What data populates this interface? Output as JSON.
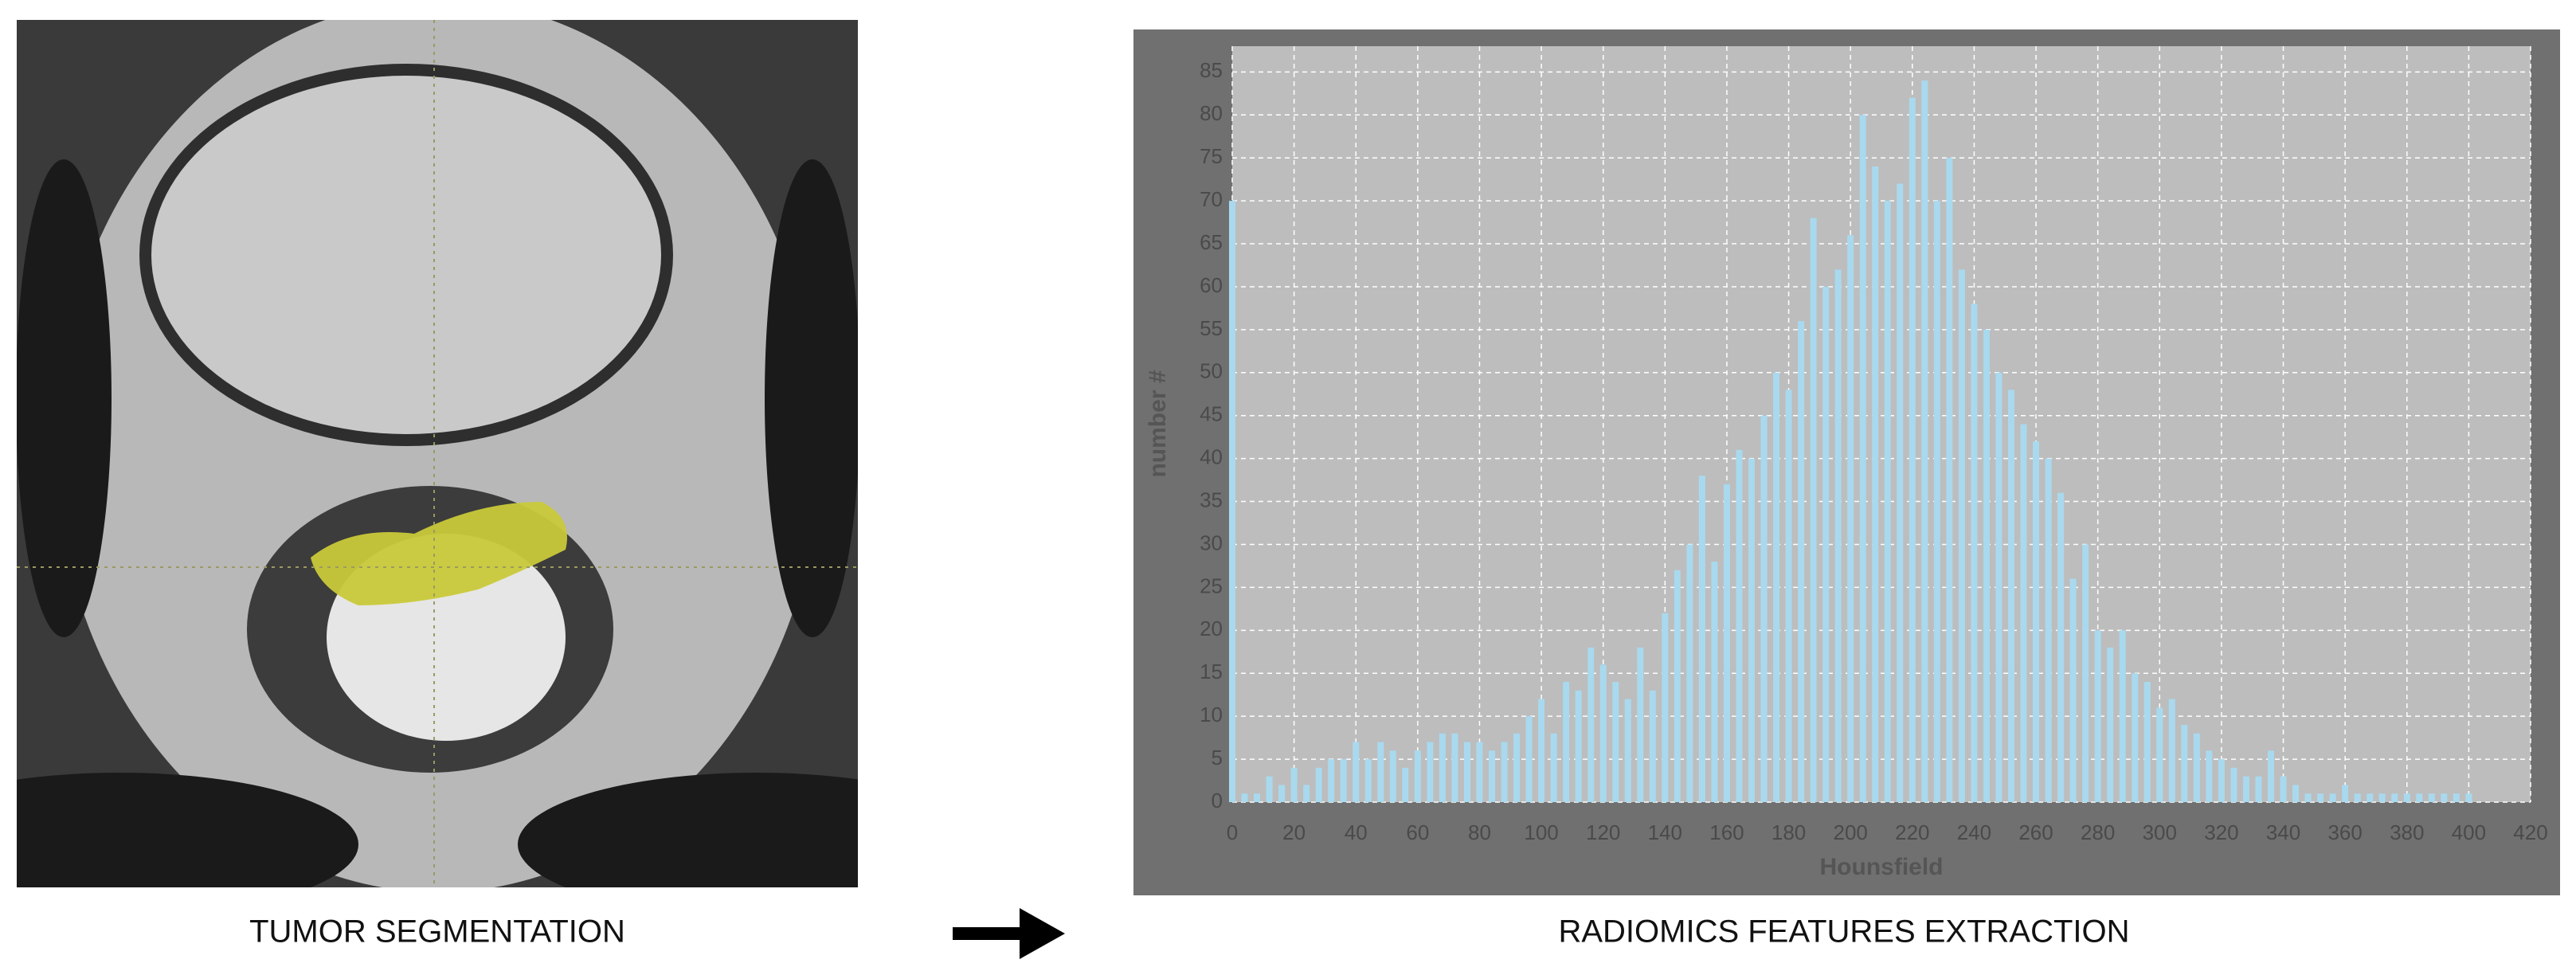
{
  "captions": {
    "left": "TUMOR SEGMENTATION",
    "right": "RADIOMICS FEATURES EXTRACTION"
  },
  "chart_data": {
    "type": "bar",
    "xlabel": "Hounsfield",
    "ylabel": "number #",
    "color": "#a9d9ee",
    "grid": true,
    "xlim": [
      0,
      420
    ],
    "ylim": [
      0,
      88
    ],
    "xticks": [
      0,
      20,
      40,
      60,
      80,
      100,
      120,
      140,
      160,
      180,
      200,
      220,
      240,
      260,
      280,
      300,
      320,
      340,
      360,
      380,
      400,
      420
    ],
    "yticks": [
      0,
      5,
      10,
      15,
      20,
      25,
      30,
      35,
      40,
      45,
      50,
      55,
      60,
      65,
      70,
      75,
      80,
      85
    ],
    "x": [
      0,
      4,
      8,
      12,
      16,
      20,
      24,
      28,
      32,
      36,
      40,
      44,
      48,
      52,
      56,
      60,
      64,
      68,
      72,
      76,
      80,
      84,
      88,
      92,
      96,
      100,
      104,
      108,
      112,
      116,
      120,
      124,
      128,
      132,
      136,
      140,
      144,
      148,
      152,
      156,
      160,
      164,
      168,
      172,
      176,
      180,
      184,
      188,
      192,
      196,
      200,
      204,
      208,
      212,
      216,
      220,
      224,
      228,
      232,
      236,
      240,
      244,
      248,
      252,
      256,
      260,
      264,
      268,
      272,
      276,
      280,
      284,
      288,
      292,
      296,
      300,
      304,
      308,
      312,
      316,
      320,
      324,
      328,
      332,
      336,
      340,
      344,
      348,
      352,
      356,
      360,
      364,
      368,
      372,
      376,
      380,
      384,
      388,
      392,
      396,
      400
    ],
    "values": [
      70,
      1,
      1,
      3,
      2,
      4,
      2,
      4,
      5,
      5,
      7,
      5,
      7,
      6,
      4,
      6,
      7,
      8,
      8,
      7,
      7,
      6,
      7,
      8,
      10,
      12,
      8,
      14,
      13,
      18,
      16,
      14,
      12,
      18,
      13,
      22,
      27,
      30,
      38,
      28,
      37,
      41,
      40,
      45,
      50,
      48,
      56,
      68,
      60,
      62,
      66,
      80,
      74,
      70,
      72,
      82,
      84,
      70,
      75,
      62,
      58,
      55,
      50,
      48,
      44,
      42,
      40,
      36,
      26,
      30,
      20,
      18,
      20,
      15,
      14,
      11,
      12,
      9,
      8,
      6,
      5,
      4,
      3,
      3,
      6,
      3,
      2,
      1,
      1,
      1,
      2,
      1,
      1,
      1,
      1,
      1,
      1,
      1,
      1,
      1,
      1
    ]
  }
}
